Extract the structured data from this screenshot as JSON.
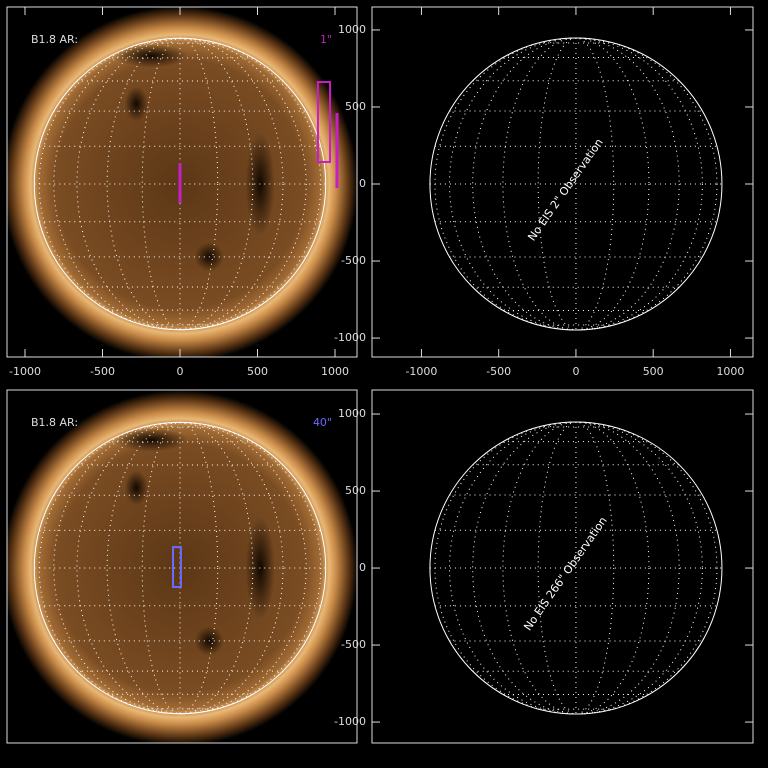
{
  "chart_data": [
    {
      "type": "map",
      "image": true,
      "label": "B1.8 AR:",
      "resolution_label": "1\"",
      "color": "#c81ec8",
      "xlim": [
        -1116,
        1142
      ],
      "ylim": [
        -1123,
        1149
      ],
      "xticks": [
        -1000,
        -500,
        0,
        500,
        1000
      ],
      "solar_radius": 940,
      "boxes": [
        {
          "x": [
            890,
            968
          ],
          "y": [
            143,
            662
          ]
        }
      ],
      "lines": [
        {
          "x": [
            1013,
            1013
          ],
          "y": [
            -26,
            461
          ]
        },
        {
          "x": [
            0,
            0
          ],
          "y": [
            -123,
            136
          ]
        }
      ]
    },
    {
      "type": "map",
      "image": false,
      "annotation": "No EIS 2\" Observation",
      "xlim": [
        -1320,
        1146
      ],
      "ylim": [
        -1123,
        1149
      ],
      "xticks": [
        -1000,
        -500,
        0,
        500,
        1000
      ],
      "yticks": [
        -1000,
        -500,
        0,
        500,
        1000
      ],
      "solar_radius": 945
    },
    {
      "type": "map",
      "image": true,
      "label": "B1.8 AR:",
      "resolution_label": "40\"",
      "color": "#6a6aff",
      "xlim": [
        -1116,
        1142
      ],
      "ylim": [
        -1136,
        1156
      ],
      "solar_radius": 940,
      "boxes": [
        {
          "x": [
            -45,
            6
          ],
          "y": [
            -123,
            136
          ]
        }
      ]
    },
    {
      "type": "map",
      "image": false,
      "annotation": "No EIS 266\" Observation",
      "xlim": [
        -1320,
        1146
      ],
      "ylim": [
        -1136,
        1156
      ],
      "yticks": [
        -1000,
        -500,
        0,
        500,
        1000
      ],
      "solar_radius": 945
    }
  ]
}
